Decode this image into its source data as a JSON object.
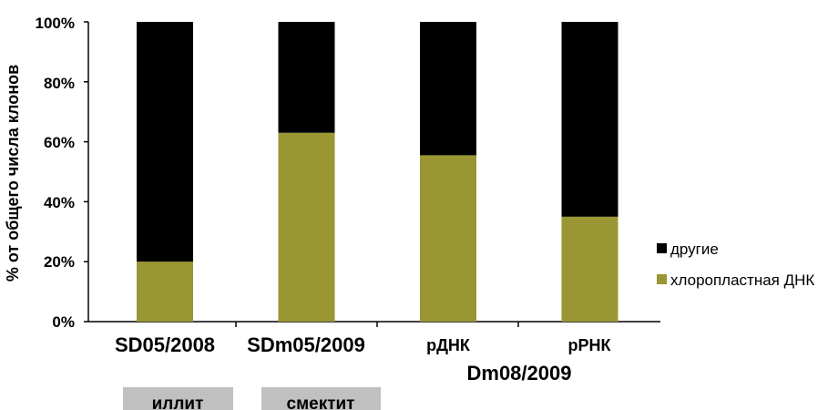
{
  "chart_data": {
    "type": "bar",
    "stacked": true,
    "ylabel": "% от общего числа клонов",
    "ylim": [
      0,
      100
    ],
    "yticks": [
      "0%",
      "20%",
      "40%",
      "60%",
      "80%",
      "100%"
    ],
    "categories": [
      "SD05/2008",
      "SDm05/2009",
      "рДНК",
      "рРНК"
    ],
    "group_label": "Dm08/2009",
    "groups": [
      "иллит",
      "смектит"
    ],
    "series": [
      {
        "name": "хлоропластная ДНК",
        "color": "#9a9633",
        "values": [
          20,
          63,
          55.5,
          35
        ]
      },
      {
        "name": "другие",
        "color": "#000000",
        "values": [
          80,
          37,
          44.5,
          65
        ]
      }
    ],
    "legend": {
      "placement": "right",
      "items": [
        "другие",
        "хлоропластная ДНК"
      ]
    }
  }
}
